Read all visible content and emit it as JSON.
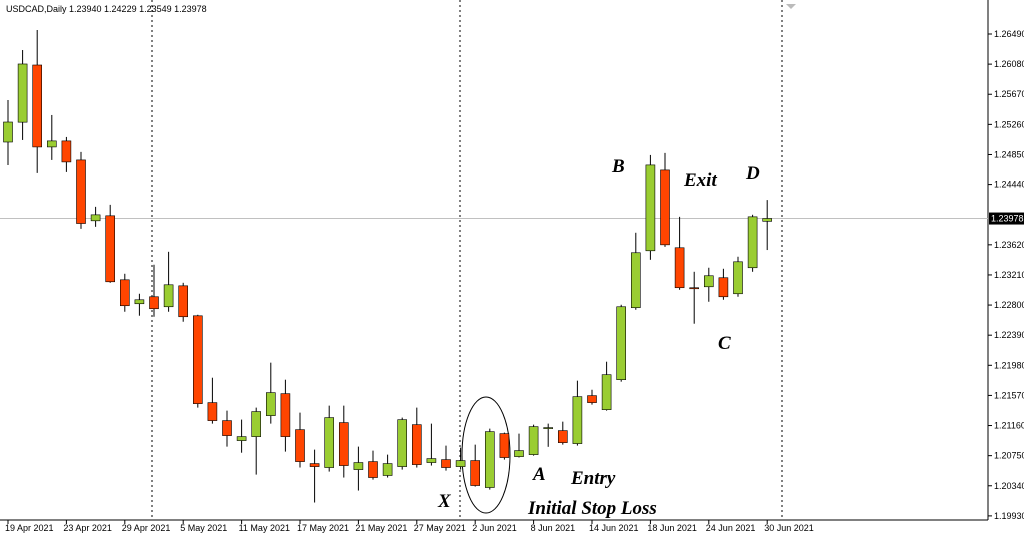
{
  "chart_data": {
    "type": "candlestick",
    "title": "USDCAD,Daily  1.23940 1.24229 1.23549 1.23978",
    "categories": [
      "19 Apr 2021",
      null,
      null,
      null,
      "23 Apr 2021",
      null,
      null,
      null,
      "29 Apr 2021",
      null,
      null,
      null,
      "5 May 2021",
      null,
      null,
      null,
      "11 May 2021",
      null,
      null,
      null,
      "17 May 2021",
      null,
      null,
      null,
      "21 May 2021",
      null,
      null,
      null,
      "27 May 2021",
      null,
      null,
      null,
      "2 Jun 2021",
      null,
      null,
      null,
      "8 Jun 2021",
      null,
      null,
      null,
      "14 Jun 2021",
      null,
      null,
      null,
      "18 Jun 2021",
      null,
      null,
      null,
      "24 Jun 2021",
      null,
      null,
      null,
      "30 Jun 2021"
    ],
    "open": [
      1.2502,
      1.2529,
      1.26068,
      1.24953,
      1.25035,
      1.24776,
      1.23947,
      1.24015,
      1.23144,
      1.22818,
      1.22913,
      1.22777,
      1.23062,
      1.22654,
      1.21472,
      1.21227,
      1.20955,
      1.21009,
      1.21295,
      1.21594,
      1.21104,
      1.20642,
      1.20588,
      1.212,
      1.2056,
      1.20669,
      1.2048,
      1.20601,
      1.21172,
      1.20656,
      1.20696,
      1.20601,
      1.20683,
      1.20316,
      1.2105,
      1.20737,
      1.20764,
      1.21118,
      1.21091,
      1.20914,
      1.21567,
      1.21376,
      1.21784,
      1.22764,
      1.23539,
      1.2464,
      1.2358,
      1.23036,
      1.23049,
      1.23172,
      1.22954,
      1.23308,
      1.2394
    ],
    "high": [
      1.25592,
      1.26272,
      1.26544,
      1.25388,
      1.25089,
      1.24885,
      1.24137,
      1.24164,
      1.23226,
      1.22954,
      1.23348,
      1.23525,
      1.23103,
      1.22668,
      1.21811,
      1.21363,
      1.21241,
      1.21404,
      1.22016,
      1.21784,
      1.21336,
      1.20832,
      1.21431,
      1.21431,
      1.20873,
      1.20819,
      1.20764,
      1.21268,
      1.21404,
      1.21186,
      1.20887,
      1.20859,
      1.209,
      1.21118,
      1.21064,
      1.2105,
      1.21172,
      1.21186,
      1.21213,
      1.21771,
      1.21648,
      1.22029,
      1.22804,
      1.23784,
      1.24844,
      1.24872,
      1.24001,
      1.23253,
      1.23308,
      1.23294,
      1.23457,
      1.24029,
      1.24229
    ],
    "low": [
      1.24707,
      1.25048,
      1.246,
      1.24776,
      1.24613,
      1.23838,
      1.23865,
      1.23103,
      1.22709,
      1.22655,
      1.22641,
      1.22709,
      1.22573,
      1.21404,
      1.21186,
      1.20873,
      1.2079,
      1.20492,
      1.21186,
      1.20805,
      1.20588,
      1.20112,
      1.20533,
      1.20452,
      1.20275,
      1.20424,
      1.20452,
      1.2056,
      1.20588,
      1.20615,
      1.20547,
      1.2056,
      1.20329,
      1.20288,
      1.20696,
      1.20724,
      1.2075,
      1.2087,
      1.209,
      1.20887,
      1.21445,
      1.21363,
      1.21757,
      1.22736,
      1.23416,
      1.23593,
      1.23008,
      1.22546,
      1.22845,
      1.22872,
      1.22913,
      1.23253,
      1.23549
    ],
    "close": [
      1.25292,
      1.26082,
      1.24953,
      1.25035,
      1.24749,
      1.2391,
      1.24028,
      1.23117,
      1.22791,
      1.22872,
      1.2275,
      1.23076,
      1.22641,
      1.21458,
      1.21227,
      1.21023,
      1.21009,
      1.2135,
      1.21608,
      1.21009,
      1.20669,
      1.20601,
      1.21268,
      1.20615,
      1.20656,
      1.20452,
      1.20642,
      1.2124,
      1.20628,
      1.2071,
      1.20588,
      1.20683,
      1.20343,
      1.21077,
      1.20724,
      1.20819,
      1.21145,
      1.21132,
      1.20927,
      1.21553,
      1.21472,
      1.21852,
      1.22777,
      1.23512,
      1.24708,
      1.2362,
      1.23036,
      1.23022,
      1.23199,
      1.22913,
      1.23389,
      1.24001,
      1.23978
    ],
    "up_color": "#9acd32",
    "down_color": "#ff4500",
    "ylim": [
      1.19874,
      1.26953
    ],
    "yticks": [
      {
        "value": 1.2649,
        "label": "1.26490"
      },
      {
        "value": 1.2608,
        "label": "1.26080"
      },
      {
        "value": 1.2567,
        "label": "1.25670"
      },
      {
        "value": 1.2526,
        "label": "1.25260"
      },
      {
        "value": 1.2485,
        "label": "1.24850"
      },
      {
        "value": 1.2444,
        "label": "1.24440"
      },
      {
        "value": 1.2362,
        "label": "1.23620"
      },
      {
        "value": 1.2321,
        "label": "1.23210"
      },
      {
        "value": 1.228,
        "label": "1.22800"
      },
      {
        "value": 1.2239,
        "label": "1.22390"
      },
      {
        "value": 1.2198,
        "label": "1.21980"
      },
      {
        "value": 1.2157,
        "label": "1.21570"
      },
      {
        "value": 1.2116,
        "label": "1.21160"
      },
      {
        "value": 1.2075,
        "label": "1.20750"
      },
      {
        "value": 1.2034,
        "label": "1.20340"
      },
      {
        "value": 1.1993,
        "label": "1.19930"
      }
    ],
    "current_price": 1.23978,
    "annotations": [
      "B",
      "Exit",
      "D",
      "C",
      "A",
      "Entry",
      "X",
      "Initial Stop Loss"
    ]
  }
}
